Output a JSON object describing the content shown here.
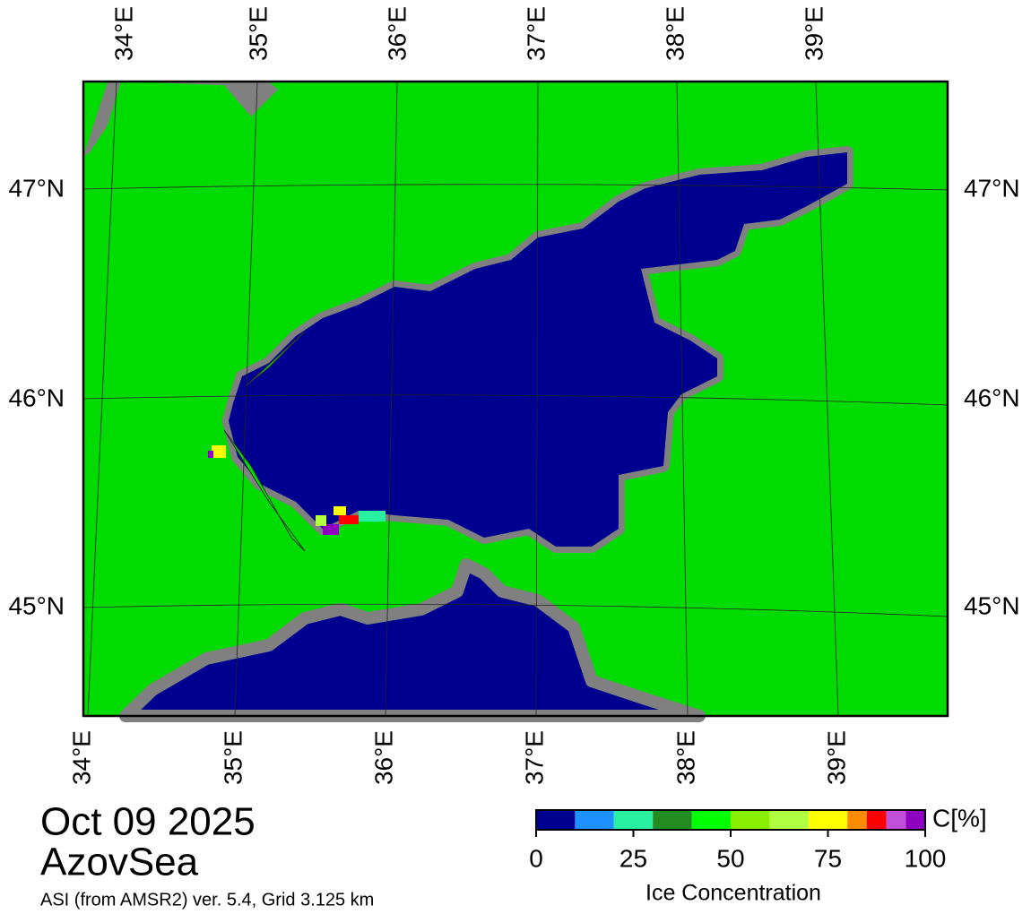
{
  "map": {
    "lon_labels": [
      "34°E",
      "35°E",
      "36°E",
      "37°E",
      "38°E",
      "39°E"
    ],
    "lat_labels": [
      "47°N",
      "46°N",
      "45°N"
    ],
    "date": "Oct 09 2025",
    "region": "AzovSea",
    "subtitle": "ASI (from AMSR2) ver. 5.4,  Grid 3.125 km"
  },
  "colorbar": {
    "unit": "C[%]",
    "title": "Ice Concentration",
    "lim": [
      0,
      100
    ],
    "ticks": [
      0,
      25,
      50,
      75,
      100
    ],
    "bounds": [
      0,
      10,
      20,
      30,
      40,
      50,
      60,
      70,
      80,
      85,
      90,
      95,
      100
    ],
    "colors": [
      "#000090",
      "#1e90ff",
      "#28f0a0",
      "#228b22",
      "#00ff00",
      "#88f000",
      "#b0ff40",
      "#ffff00",
      "#ff8c00",
      "#ff0000",
      "#c050d8",
      "#9000c0"
    ]
  }
}
